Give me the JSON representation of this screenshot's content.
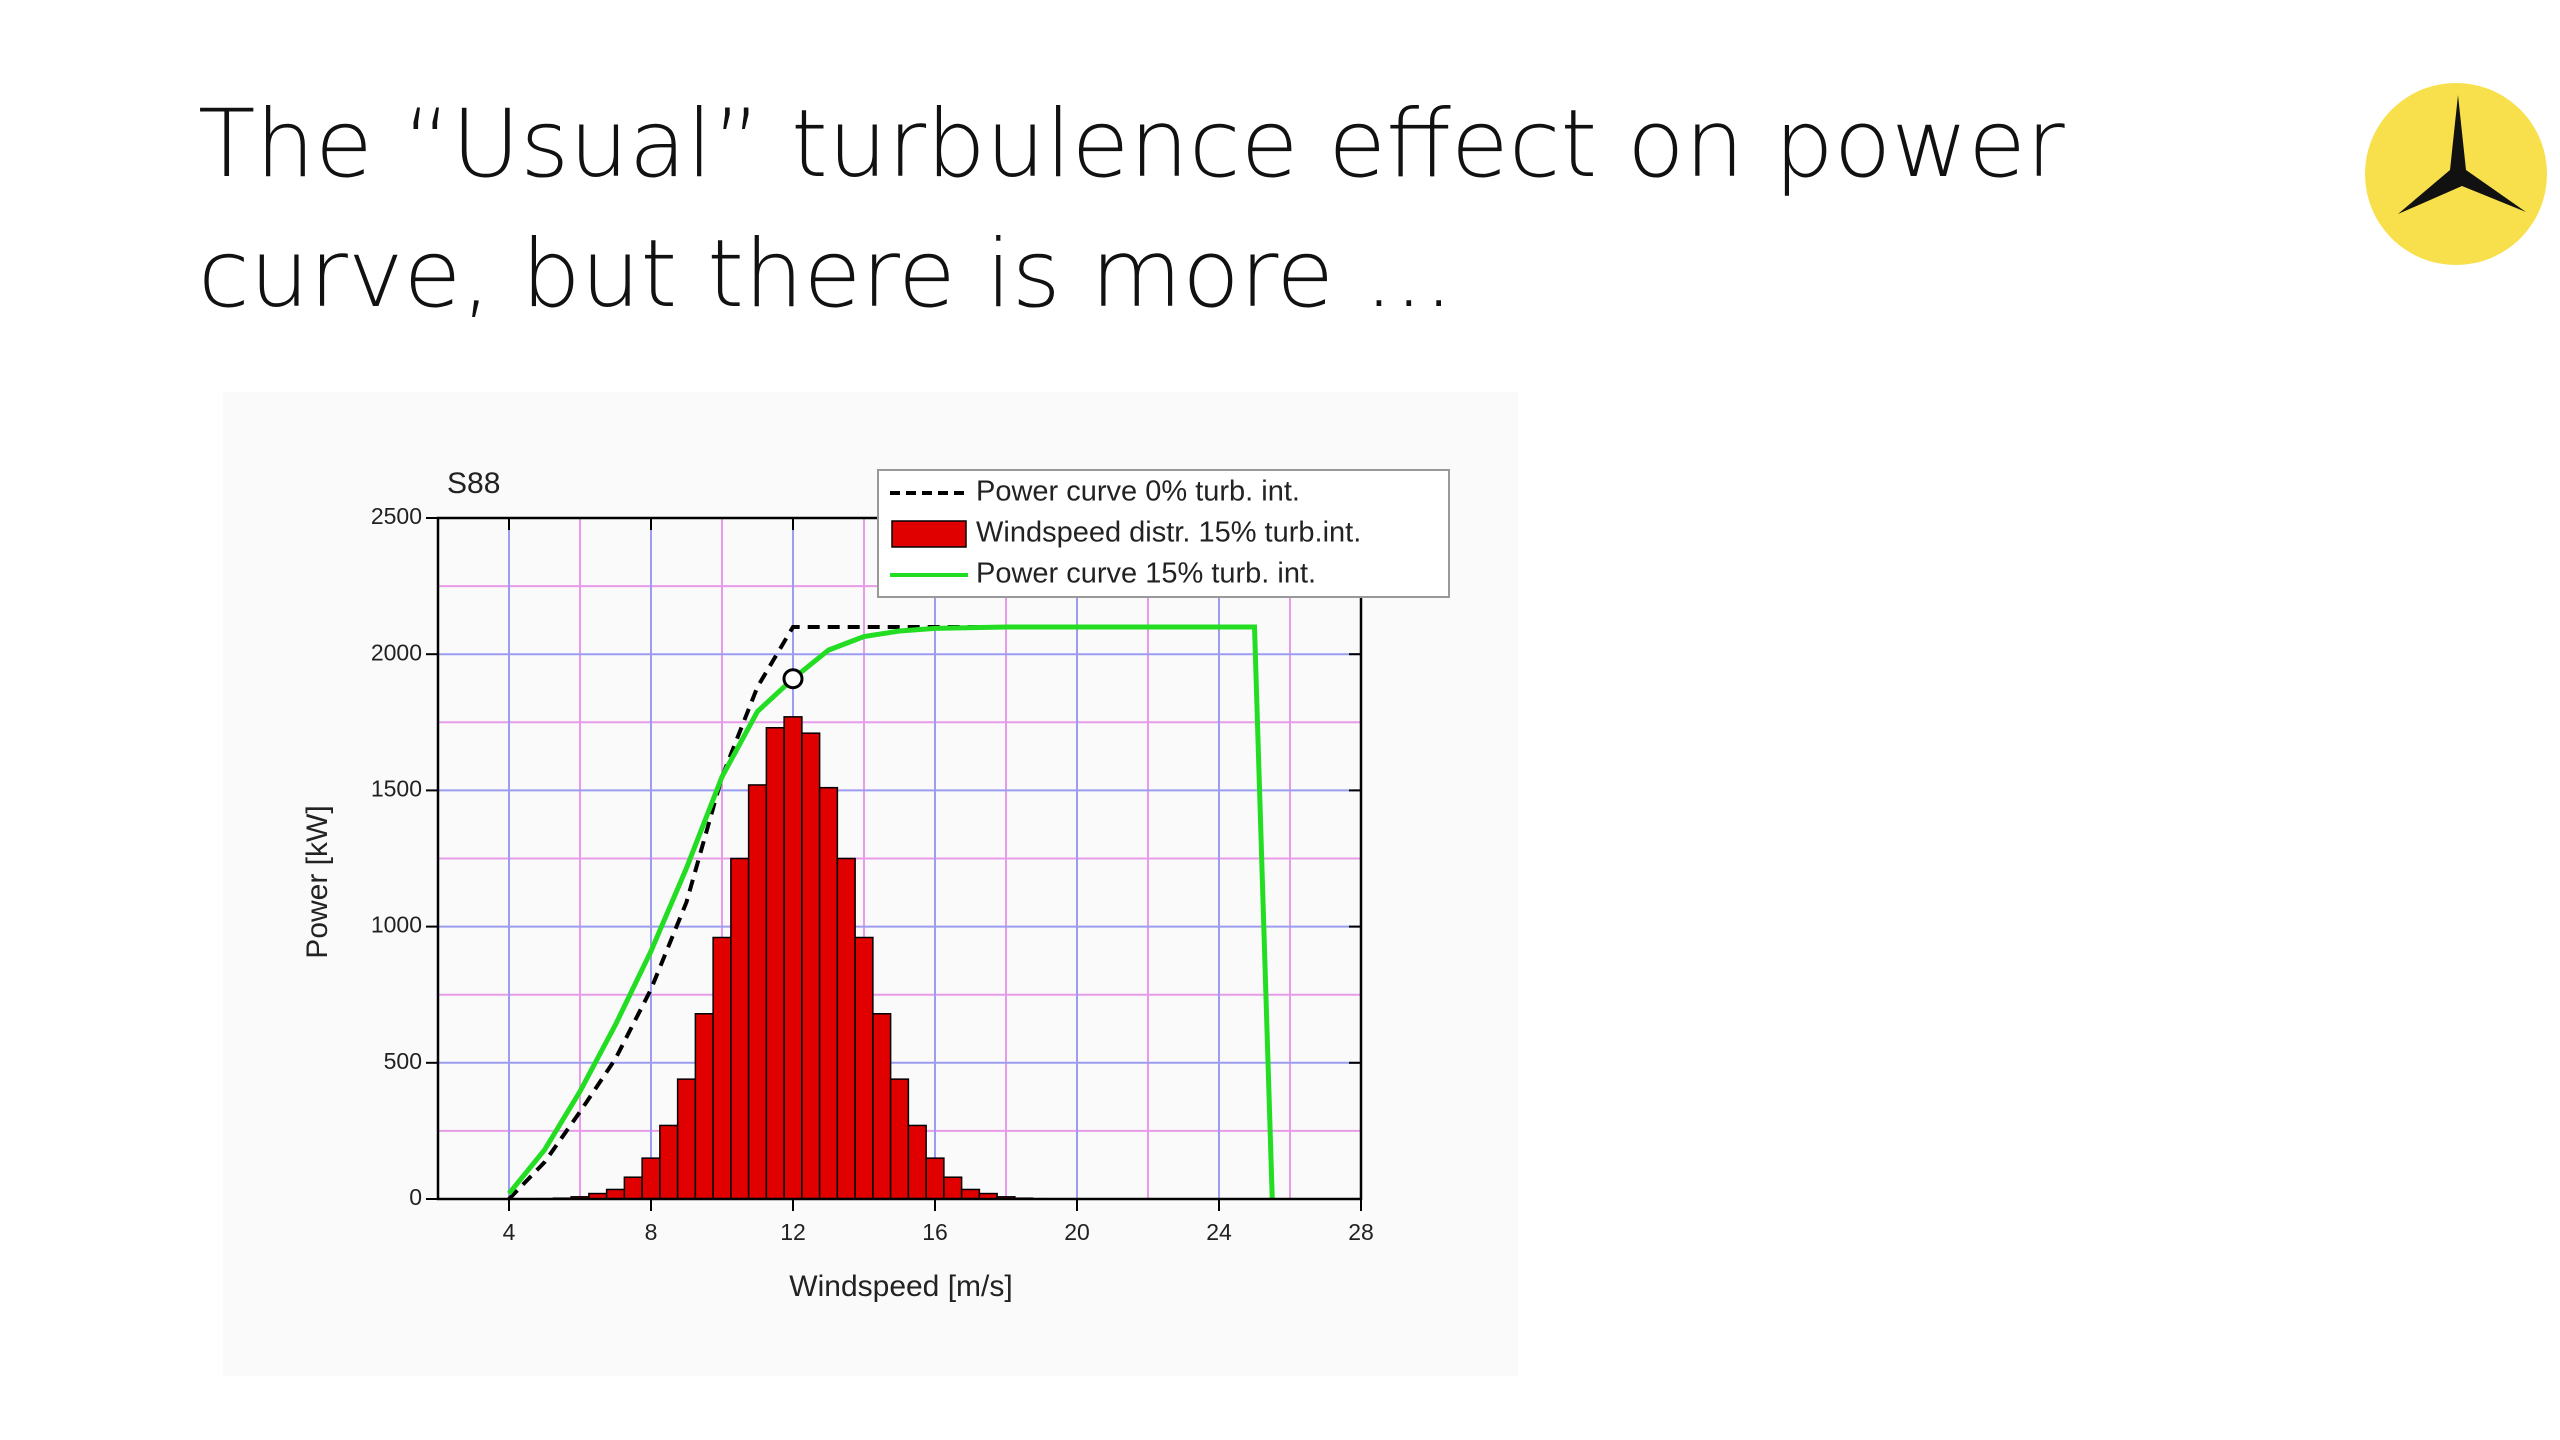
{
  "slide_title": "The “Usual” turbulence effect on power curve, but there is more ...",
  "chart_data": {
    "type": "combo",
    "subtitle": "S88",
    "x_label": "Windspeed [m/s]",
    "y_label": "Power [kW]",
    "xlim": [
      2,
      28
    ],
    "xticks": [
      4,
      8,
      12,
      16,
      20,
      24,
      28
    ],
    "xminor": [
      6,
      10,
      14,
      18,
      22,
      26
    ],
    "ylim": [
      0,
      2500
    ],
    "yticks": [
      0,
      500,
      1000,
      1500,
      2000,
      2500
    ],
    "yminor": [
      250,
      750,
      1250,
      1750,
      2250
    ],
    "grid": true,
    "legend": "upper right",
    "series": [
      {
        "name": "Power curve 0% turb. int.",
        "type": "line",
        "color": "#000000",
        "dashed": true,
        "x": [
          4,
          5,
          6,
          7,
          8,
          9,
          10,
          11,
          12,
          18,
          25
        ],
        "values": [
          0,
          135,
          320,
          515,
          770,
          1090,
          1550,
          1880,
          2100,
          2100,
          2100
        ]
      },
      {
        "name": "Windspeed distr. 15% turb.int.",
        "type": "histogram",
        "color": "#e00000",
        "bins": [
          4.75,
          5.25,
          5.75,
          6.25,
          6.75,
          7.25,
          7.75,
          8.25,
          8.75,
          9.25,
          9.75,
          10.25,
          10.75,
          11.25,
          11.75,
          12.25,
          12.75,
          13.25,
          13.75,
          14.25,
          14.75,
          15.25,
          15.75,
          16.25,
          16.75,
          17.25,
          17.75,
          18.25,
          18.75,
          19.25
        ],
        "values": [
          1,
          3,
          8,
          20,
          35,
          80,
          150,
          270,
          440,
          680,
          960,
          1250,
          1520,
          1730,
          1770,
          1710,
          1510,
          1250,
          960,
          680,
          440,
          270,
          150,
          80,
          35,
          20,
          8,
          3,
          1
        ]
      },
      {
        "name": "Power curve 15% turb. int.",
        "type": "line",
        "color": "#22dd22",
        "dashed": false,
        "x": [
          4,
          5,
          6,
          7,
          8,
          9,
          10,
          11,
          12,
          13,
          14,
          15,
          16,
          18,
          25,
          25.5
        ],
        "values": [
          20,
          180,
          395,
          640,
          910,
          1215,
          1550,
          1790,
          1910,
          2015,
          2065,
          2085,
          2095,
          2100,
          2100,
          0
        ]
      }
    ],
    "marker": {
      "x": 12,
      "y": 1910
    }
  }
}
